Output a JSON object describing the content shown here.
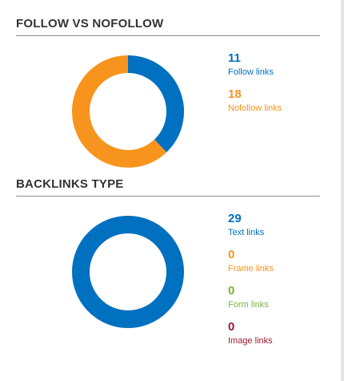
{
  "colors": {
    "blue": "#0070C0",
    "orange": "#F7941D",
    "green": "#7BB33A",
    "maroon": "#9B1B30"
  },
  "follow_section": {
    "title": "FOLLOW VS NOFOLLOW",
    "stats": [
      {
        "value": "11",
        "label": "Follow links",
        "color": "#0070C0"
      },
      {
        "value": "18",
        "label": "Nofollow links",
        "color": "#F7941D"
      }
    ]
  },
  "backlinks_section": {
    "title": "BACKLINKS TYPE",
    "stats": [
      {
        "value": "29",
        "label": "Text links",
        "color": "#0070C0"
      },
      {
        "value": "0",
        "label": "Frame links",
        "color": "#F7941D"
      },
      {
        "value": "0",
        "label": "Form links",
        "color": "#7BB33A"
      },
      {
        "value": "0",
        "label": "Image links",
        "color": "#9B1B30"
      }
    ]
  },
  "chart_data": [
    {
      "type": "pie",
      "variant": "donut",
      "categories": [
        "Follow links",
        "Nofollow links"
      ],
      "values": [
        11,
        18
      ],
      "colors": [
        "#0070C0",
        "#F7941D"
      ]
    },
    {
      "type": "pie",
      "variant": "donut",
      "categories": [
        "Text links",
        "Frame links",
        "Form links",
        "Image links"
      ],
      "values": [
        29,
        0,
        0,
        0
      ],
      "colors": [
        "#0070C0",
        "#F7941D",
        "#7BB33A",
        "#9B1B30"
      ]
    }
  ]
}
